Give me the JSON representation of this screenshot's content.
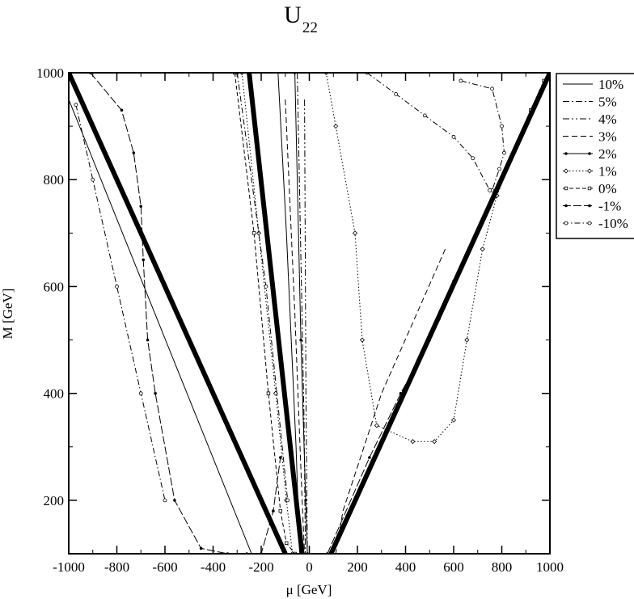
{
  "chart_data": {
    "type": "line",
    "title": "U",
    "title_subscript": "22",
    "xlabel": "μ [GeV]",
    "ylabel": "M [GeV]",
    "xlim": [
      -1000,
      1000
    ],
    "ylim": [
      100,
      1000
    ],
    "xticks": [
      -1000,
      -800,
      -600,
      -400,
      -200,
      0,
      200,
      400,
      600,
      800,
      1000
    ],
    "yticks": [
      200,
      400,
      600,
      800,
      1000
    ],
    "legend_position": "right",
    "boundaries": [
      {
        "x": [
          -1000,
          -100
        ],
        "y": [
          1000,
          100
        ]
      },
      {
        "x": [
          -250,
          -30
        ],
        "y": [
          1000,
          100
        ]
      },
      {
        "x": [
          90,
          1000
        ],
        "y": [
          100,
          1000
        ]
      }
    ],
    "series": [
      {
        "name": "10%",
        "style": "solid",
        "x": [
          -1000,
          -240,
          null,
          -130,
          -95,
          -55,
          -40
        ],
        "y": [
          950,
          100,
          null,
          1000,
          700,
          300,
          100
        ]
      },
      {
        "name": "5%",
        "style": "dashdot",
        "x": [
          -50,
          -22,
          -16,
          null,
          790,
          1000
        ],
        "y": [
          1000,
          350,
          100,
          null,
          800,
          1000
        ]
      },
      {
        "name": "4%",
        "style": "dashdotdot",
        "x": [
          -20,
          -14,
          -8,
          null,
          920,
          965,
          1000
        ],
        "y": [
          950,
          400,
          100,
          null,
          930,
          975,
          1000
        ]
      },
      {
        "name": "3%",
        "style": "dashed",
        "x": [
          -100,
          -60,
          -30,
          -20,
          null,
          565,
          300,
          140,
          110
        ],
        "y": [
          950,
          550,
          200,
          100,
          null,
          670,
          400,
          180,
          100
        ]
      },
      {
        "name": "2%",
        "style": "solid-dots",
        "x": [
          -60,
          -35,
          -15,
          -8
        ],
        "y": [
          1000,
          500,
          200,
          100
        ]
      },
      {
        "name": "1%",
        "style": "dotted-diamonds",
        "x": [
          -280,
          -210,
          -140,
          -95,
          -70,
          null,
          70,
          110,
          190,
          220,
          280,
          430,
          520,
          600,
          655,
          720,
          780,
          850
        ],
        "y": [
          1000,
          700,
          400,
          200,
          100,
          null,
          1000,
          900,
          700,
          500,
          340,
          310,
          310,
          350,
          500,
          670,
          770,
          850
        ]
      },
      {
        "name": "0%",
        "style": "dashed-squares",
        "x": [
          -310,
          -230,
          -170,
          -120,
          -95,
          -60,
          null,
          920,
          975
        ],
        "y": [
          1000,
          700,
          400,
          180,
          120,
          100,
          null,
          930,
          985
        ]
      },
      {
        "name": "-1%",
        "style": "longdash-dots",
        "x": [
          -910,
          -780,
          -730,
          -700,
          -690,
          -672,
          -640,
          -560,
          -450,
          -340,
          -260,
          -200,
          -150,
          -120,
          null,
          75,
          250,
          380,
          500,
          540,
          600
        ],
        "y": [
          1000,
          930,
          850,
          750,
          650,
          500,
          400,
          200,
          110,
          100,
          100,
          100,
          180,
          280,
          null,
          100,
          280,
          400,
          500,
          540,
          610
        ]
      },
      {
        "name": "-10%",
        "style": "dashdot-circles",
        "x": [
          -970,
          -900,
          -800,
          -700,
          -600,
          null,
          -300,
          -180,
          -90,
          null,
          630,
          760,
          800,
          810,
          790,
          760,
          null,
          240,
          360,
          480,
          600,
          680,
          750
        ],
        "y": [
          940,
          800,
          600,
          400,
          200,
          null,
          1000,
          600,
          200,
          null,
          985,
          970,
          900,
          850,
          820,
          780,
          null,
          1000,
          960,
          920,
          880,
          840,
          780
        ]
      }
    ]
  }
}
